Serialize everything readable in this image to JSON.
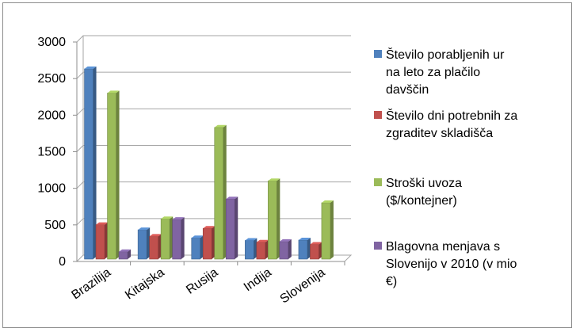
{
  "chart_data": {
    "type": "bar",
    "categories": [
      "Brazilija",
      "Kitajska",
      "Rusija",
      "Indija",
      "Slovenija"
    ],
    "series": [
      {
        "name": "Število porabljenih ur na leto za plačilo davščin",
        "values": [
          2600,
          400,
          290,
          255,
          260
        ],
        "color": "#4f81bd"
      },
      {
        "name": "Število dni potrebnih za zgraditev skladišča",
        "values": [
          470,
          310,
          420,
          230,
          200
        ],
        "color": "#c0504d"
      },
      {
        "name": "Stroški uvoza ($/kontejner)",
        "values": [
          2270,
          550,
          1800,
          1070,
          770
        ],
        "color": "#9bbb59"
      },
      {
        "name": "Blagovna menjava s Slovenijo v 2010 (v mio €)",
        "values": [
          100,
          540,
          820,
          240,
          null
        ],
        "color": "#8064a2"
      }
    ],
    "legend_lines": [
      [
        "Število porabljenih ur",
        "na leto za plačilo",
        "davščin"
      ],
      [
        "Število dni potrebnih za",
        "zgraditev skladišča"
      ],
      [
        "Stroški uvoza",
        "($/kontejner)"
      ],
      [
        "Blagovna menjava s",
        "Slovenijo v 2010 (v mio",
        "€)"
      ]
    ],
    "ylim": [
      0,
      3000
    ],
    "yticks": [
      0,
      500,
      1000,
      1500,
      2000,
      2500,
      3000
    ],
    "grid": true,
    "legend_position": "right",
    "style": "3d-clustered-column"
  }
}
